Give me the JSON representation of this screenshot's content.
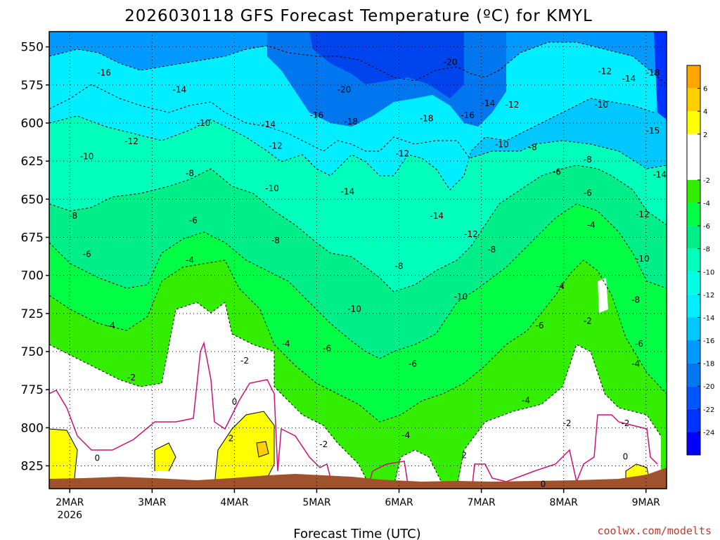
{
  "title": "2026030118 GFS Forecast Temperature (ºC) for KMYL",
  "credit": "coolwx.com/modelts",
  "chart_data": {
    "type": "heatmap",
    "title": "2026030118 GFS Forecast Temperature (ºC) for KMYL",
    "xlabel": "Forecast Time (UTC)",
    "ylabel": "",
    "x_ticks": [
      {
        "label": "2MAR",
        "sublabel": "2026",
        "hour": 6
      },
      {
        "label": "3MAR",
        "sublabel": "",
        "hour": 30
      },
      {
        "label": "4MAR",
        "sublabel": "",
        "hour": 54
      },
      {
        "label": "5MAR",
        "sublabel": "",
        "hour": 78
      },
      {
        "label": "6MAR",
        "sublabel": "",
        "hour": 102
      },
      {
        "label": "7MAR",
        "sublabel": "",
        "hour": 126
      },
      {
        "label": "8MAR",
        "sublabel": "",
        "hour": 150
      },
      {
        "label": "9MAR",
        "sublabel": "",
        "hour": 174
      }
    ],
    "xlim": [
      0,
      180
    ],
    "y_ticks": [
      550,
      575,
      600,
      625,
      650,
      675,
      700,
      725,
      750,
      775,
      800,
      825
    ],
    "ylim": [
      540,
      840
    ],
    "ground_pressure": 834,
    "colorbar_labels": [
      "6",
      "4",
      "2",
      "-2",
      "-4",
      "-6",
      "-8",
      "-10",
      "-12",
      "-14",
      "-16",
      "-18",
      "-20",
      "-22",
      "-24"
    ],
    "colorbar_bins": [
      {
        "min": 6,
        "max": 8,
        "color": "#ffa500"
      },
      {
        "min": 4,
        "max": 6,
        "color": "#ffd000"
      },
      {
        "min": 2,
        "max": 4,
        "color": "#ffff00"
      },
      {
        "min": -2,
        "max": 2,
        "color": "#ffffff"
      },
      {
        "min": -4,
        "max": -2,
        "color": "#33ee00"
      },
      {
        "min": -6,
        "max": -4,
        "color": "#00ff44"
      },
      {
        "min": -8,
        "max": -6,
        "color": "#00ee88"
      },
      {
        "min": -10,
        "max": -8,
        "color": "#00ffbb"
      },
      {
        "min": -12,
        "max": -10,
        "color": "#00ffe4"
      },
      {
        "min": -14,
        "max": -12,
        "color": "#00eeff"
      },
      {
        "min": -16,
        "max": -14,
        "color": "#00c8ff"
      },
      {
        "min": -18,
        "max": -16,
        "color": "#0099ff"
      },
      {
        "min": -20,
        "max": -18,
        "color": "#0077ee"
      },
      {
        "min": -22,
        "max": -20,
        "color": "#0055ff"
      },
      {
        "min": -24,
        "max": -22,
        "color": "#0033ff"
      },
      {
        "min": -26,
        "max": -24,
        "color": "#0000ff"
      }
    ],
    "colors": {
      "zero_line": "#cc1177",
      "ground": "#a0522d",
      "neg_contour": "#000000"
    },
    "contour_labels": [
      {
        "text": "-16",
        "hour": 16,
        "p": 567
      },
      {
        "text": "-14",
        "hour": 38,
        "p": 578
      },
      {
        "text": "-20",
        "hour": 86,
        "p": 578
      },
      {
        "text": "-20",
        "hour": 117,
        "p": 560
      },
      {
        "text": "-16",
        "hour": 78,
        "p": 595
      },
      {
        "text": "-18",
        "hour": 88,
        "p": 599
      },
      {
        "text": "-18",
        "hour": 110,
        "p": 597
      },
      {
        "text": "-16",
        "hour": 122,
        "p": 595
      },
      {
        "text": "-14",
        "hour": 128,
        "p": 587
      },
      {
        "text": "-12",
        "hour": 135,
        "p": 588
      },
      {
        "text": "-12",
        "hour": 162,
        "p": 566
      },
      {
        "text": "-14",
        "hour": 169,
        "p": 571
      },
      {
        "text": "-18",
        "hour": 176,
        "p": 567
      },
      {
        "text": "-10",
        "hour": 161,
        "p": 588
      },
      {
        "text": "-10",
        "hour": 45,
        "p": 600
      },
      {
        "text": "-14",
        "hour": 64,
        "p": 601
      },
      {
        "text": "-12",
        "hour": 24,
        "p": 612
      },
      {
        "text": "-12",
        "hour": 66,
        "p": 615
      },
      {
        "text": "-12",
        "hour": 103,
        "p": 620
      },
      {
        "text": "-10",
        "hour": 132,
        "p": 614
      },
      {
        "text": "-8",
        "hour": 141,
        "p": 616
      },
      {
        "text": "-15",
        "hour": 176,
        "p": 605
      },
      {
        "text": "-10",
        "hour": 11,
        "p": 622
      },
      {
        "text": "-8",
        "hour": 41,
        "p": 633
      },
      {
        "text": "-6",
        "hour": 148,
        "p": 632
      },
      {
        "text": "-8",
        "hour": 157,
        "p": 624
      },
      {
        "text": "-14",
        "hour": 178,
        "p": 634
      },
      {
        "text": "-10",
        "hour": 65,
        "p": 643
      },
      {
        "text": "-14",
        "hour": 87,
        "p": 645
      },
      {
        "text": "-14",
        "hour": 113,
        "p": 661
      },
      {
        "text": "-6",
        "hour": 157,
        "p": 646
      },
      {
        "text": "-12",
        "hour": 173,
        "p": 660
      },
      {
        "text": "-8",
        "hour": 7,
        "p": 661
      },
      {
        "text": "-6",
        "hour": 42,
        "p": 664
      },
      {
        "text": "-12",
        "hour": 123,
        "p": 673
      },
      {
        "text": "-4",
        "hour": 158,
        "p": 667
      },
      {
        "text": "-8",
        "hour": 66,
        "p": 677
      },
      {
        "text": "-8",
        "hour": 129,
        "p": 683
      },
      {
        "text": "-6",
        "hour": 11,
        "p": 686
      },
      {
        "text": "-10",
        "hour": 173,
        "p": 689
      },
      {
        "text": "-4",
        "hour": 41,
        "p": 690
      },
      {
        "text": "-8",
        "hour": 102,
        "p": 694
      },
      {
        "text": "-4",
        "hour": 149,
        "p": 707
      },
      {
        "text": "-10",
        "hour": 120,
        "p": 714
      },
      {
        "text": "-8",
        "hour": 171,
        "p": 716
      },
      {
        "text": "-10",
        "hour": 89,
        "p": 722
      },
      {
        "text": "-2",
        "hour": 157,
        "p": 730
      },
      {
        "text": "-4",
        "hour": 18,
        "p": 733
      },
      {
        "text": "-6",
        "hour": 143,
        "p": 733
      },
      {
        "text": "-6",
        "hour": 172,
        "p": 745
      },
      {
        "text": "-4",
        "hour": 69,
        "p": 745
      },
      {
        "text": "-6",
        "hour": 81,
        "p": 748
      },
      {
        "text": "-2",
        "hour": 57,
        "p": 756
      },
      {
        "text": "-4",
        "hour": 171,
        "p": 758
      },
      {
        "text": "-6",
        "hour": 106,
        "p": 758
      },
      {
        "text": "-2",
        "hour": 24,
        "p": 767
      },
      {
        "text": "-4",
        "hour": 139,
        "p": 782
      },
      {
        "text": "0",
        "hour": 54,
        "p": 783
      },
      {
        "text": "-2",
        "hour": 151,
        "p": 797
      },
      {
        "text": "-2",
        "hour": 168,
        "p": 797
      },
      {
        "text": "-4",
        "hour": 104,
        "p": 805
      },
      {
        "text": "2",
        "hour": 53,
        "p": 807
      },
      {
        "text": "-2",
        "hour": 80,
        "p": 811
      },
      {
        "text": "2",
        "hour": 121,
        "p": 818
      },
      {
        "text": "0",
        "hour": 14,
        "p": 820
      },
      {
        "text": "0",
        "hour": 168,
        "p": 819
      },
      {
        "text": "0",
        "hour": 144,
        "p": 837
      }
    ]
  }
}
